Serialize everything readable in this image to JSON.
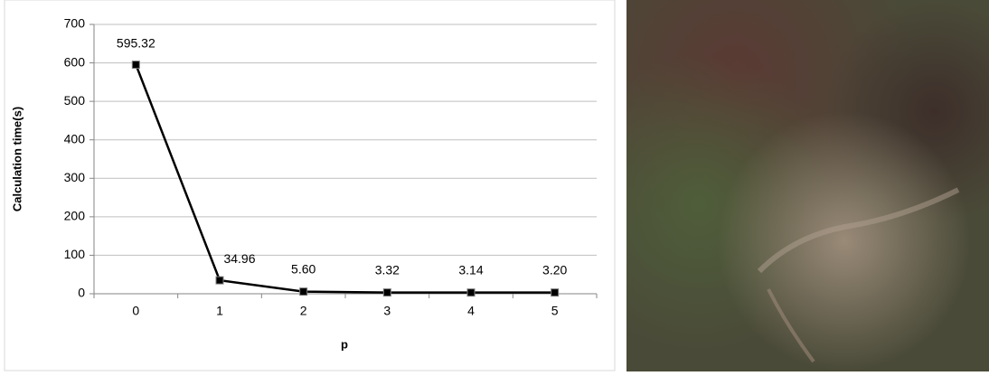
{
  "chart_data": {
    "type": "line",
    "x_label": "p",
    "y_label": "Calculation time(s)",
    "categories": [
      "0",
      "1",
      "2",
      "3",
      "4",
      "5"
    ],
    "values": [
      595.32,
      34.96,
      5.6,
      3.32,
      3.14,
      3.2
    ],
    "value_labels": [
      "595.32",
      "34.96",
      "5.60",
      "3.32",
      "3.14",
      "3.20"
    ],
    "color": "#000000",
    "ylim": [
      0,
      700
    ],
    "yticks": [
      0,
      100,
      200,
      300,
      400,
      500,
      600,
      700
    ],
    "grid": true
  }
}
